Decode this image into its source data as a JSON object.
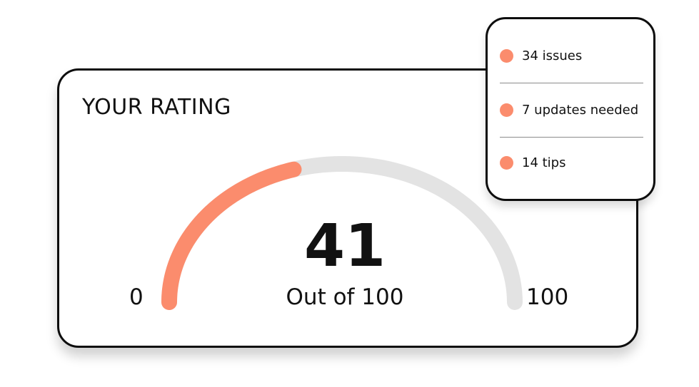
{
  "rating_card": {
    "title": "YOUR RATING",
    "score": 41,
    "score_label": "41",
    "caption": "Out of 100",
    "min_label": "0",
    "max_label": "100",
    "min": 0,
    "max": 100
  },
  "summary": {
    "items": [
      {
        "label": "34 issues"
      },
      {
        "label": "7 updates needed"
      },
      {
        "label": "14 tips"
      }
    ]
  },
  "colors": {
    "accent": "#fb8c6d",
    "track": "#e3e3e3",
    "border": "#0d0d0d",
    "text": "#111111"
  },
  "icons": {
    "status_dot": "filled-circle-icon"
  }
}
